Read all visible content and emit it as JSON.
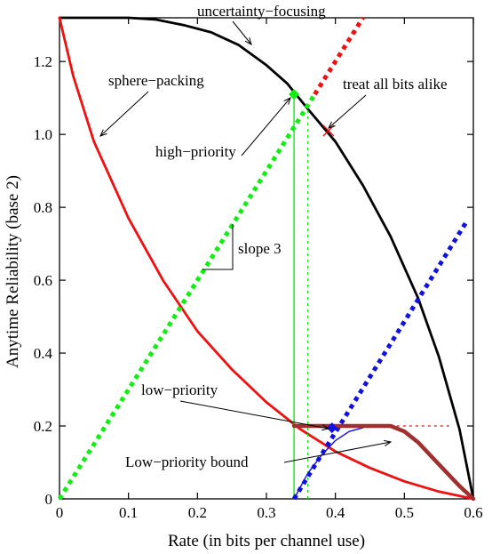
{
  "chart_data": {
    "type": "line",
    "title": "",
    "xlabel": "Rate (in bits per channel use)",
    "ylabel": "Anytime Reliability (base 2)",
    "xlim": [
      0,
      0.6
    ],
    "ylim": [
      0,
      1.32
    ],
    "xticks": [
      0,
      0.1,
      0.2,
      0.3,
      0.4,
      0.5,
      0.6
    ],
    "xtick_labels": [
      "0",
      "0.1",
      "0.2",
      "0.3",
      "0.4",
      "0.5",
      "0.6"
    ],
    "yticks": [
      0,
      0.2,
      0.4,
      0.6,
      0.8,
      1.0,
      1.2
    ],
    "ytick_labels": [
      "0",
      "0.2",
      "0.4",
      "0.6",
      "0.8",
      "1.0",
      "1.2"
    ],
    "grid": false,
    "legend": "none",
    "colors": {
      "uncertainty_focusing": "#000000",
      "sphere_packing": "#ee1111",
      "high_priority": "#11ee11",
      "low_priority": "#1111dd",
      "low_priority_bound": "#a03030",
      "treat_alike": "#ee1111"
    },
    "series": [
      {
        "key": "uncertainty_focusing",
        "style": "solid",
        "points": [
          [
            0,
            1.32
          ],
          [
            0.1,
            1.32
          ],
          [
            0.14,
            1.315
          ],
          [
            0.18,
            1.3
          ],
          [
            0.22,
            1.28
          ],
          [
            0.26,
            1.245
          ],
          [
            0.3,
            1.19
          ],
          [
            0.33,
            1.14
          ],
          [
            0.36,
            1.07
          ],
          [
            0.4,
            0.98
          ],
          [
            0.44,
            0.86
          ],
          [
            0.48,
            0.72
          ],
          [
            0.52,
            0.55
          ],
          [
            0.55,
            0.39
          ],
          [
            0.58,
            0.19
          ],
          [
            0.6,
            0
          ]
        ]
      },
      {
        "key": "sphere_packing",
        "style": "solid",
        "points": [
          [
            0,
            1.32
          ],
          [
            0.02,
            1.16
          ],
          [
            0.05,
            0.98
          ],
          [
            0.1,
            0.77
          ],
          [
            0.15,
            0.6
          ],
          [
            0.2,
            0.46
          ],
          [
            0.25,
            0.355
          ],
          [
            0.3,
            0.265
          ],
          [
            0.35,
            0.19
          ],
          [
            0.4,
            0.13
          ],
          [
            0.45,
            0.085
          ],
          [
            0.5,
            0.048
          ],
          [
            0.55,
            0.02
          ],
          [
            0.6,
            0
          ]
        ]
      },
      {
        "key": "high_priority_slope_line",
        "style": "dotted",
        "points": [
          [
            0,
            0
          ],
          [
            0.37,
            1.11
          ]
        ]
      },
      {
        "key": "high_priority_vertical",
        "style": "solid-thin",
        "points": [
          [
            0.34,
            0
          ],
          [
            0.34,
            1.11
          ]
        ]
      },
      {
        "key": "high_priority_vertical_dotted",
        "style": "dotted-thin",
        "points": [
          [
            0.36,
            0
          ],
          [
            0.36,
            1.07
          ]
        ]
      },
      {
        "key": "treat_alike_dotted",
        "style": "dotted",
        "points": [
          [
            0.37,
            1.11
          ],
          [
            0.44,
            1.32
          ]
        ]
      },
      {
        "key": "low_priority_slope_line",
        "style": "dotted",
        "points": [
          [
            0.34,
            0
          ],
          [
            0.59,
            0.76
          ]
        ]
      },
      {
        "key": "low_priority_curve",
        "style": "solid-thin",
        "points": [
          [
            0.34,
            0
          ],
          [
            0.36,
            0.07
          ],
          [
            0.38,
            0.12
          ],
          [
            0.4,
            0.16
          ],
          [
            0.42,
            0.185
          ],
          [
            0.44,
            0.195
          ]
        ]
      },
      {
        "key": "low_priority_bound",
        "style": "thick",
        "points": [
          [
            0.34,
            0.2
          ],
          [
            0.48,
            0.2
          ],
          [
            0.5,
            0.185
          ],
          [
            0.52,
            0.155
          ],
          [
            0.54,
            0.115
          ],
          [
            0.56,
            0.075
          ],
          [
            0.58,
            0.035
          ],
          [
            0.6,
            0
          ]
        ]
      },
      {
        "key": "low_priority_bound_dotted",
        "style": "dotted-thin",
        "points": [
          [
            0.48,
            0.2
          ],
          [
            0.57,
            0.2
          ]
        ]
      }
    ],
    "markers": [
      {
        "key": "high_priority_point",
        "x": 0.34,
        "y": 1.11,
        "shape": "diamond",
        "color": "#11ee11"
      },
      {
        "key": "low_priority_point",
        "x": 0.395,
        "y": 0.195,
        "shape": "diamond",
        "color": "#1111dd"
      },
      {
        "key": "treat_alike_point",
        "x": 0.39,
        "y": 1.01,
        "shape": "cross",
        "color": "#ee1111"
      }
    ],
    "annotations": {
      "uncertainty_focusing": "uncertainty−focusing",
      "sphere_packing": "sphere−packing",
      "treat_all_bits_alike": "treat all bits alike",
      "high_priority": "high−priority",
      "slope_3": "slope 3",
      "low_priority": "low−priority",
      "low_priority_bound": "Low−priority bound"
    }
  }
}
